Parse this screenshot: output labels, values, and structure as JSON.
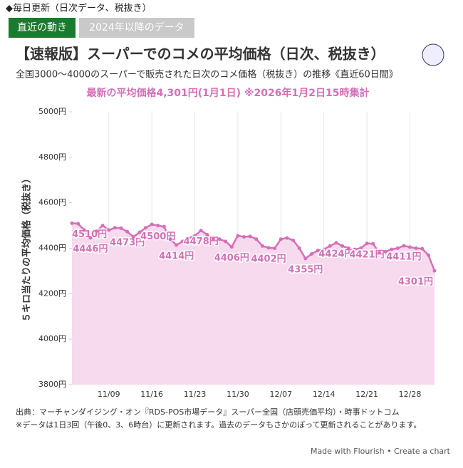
{
  "header": {
    "note": "◆毎日更新（日次データ、税抜き）",
    "tabs": [
      "直近の動き",
      "2024年以降のデータ"
    ]
  },
  "chart_data": {
    "type": "line",
    "title": "【速報版】スーパーでのコメの平均価格（日次、税抜き）",
    "subtitle": "全国3000〜4000のスーパーで販売された日次のコメ価格（税抜き）の推移《直近60日間》",
    "highlight": "最新の平均価格4,301円(1月1日) ※2026年1月2日15時集計",
    "ylabel": "５キロ当たりの平均価格（税抜き）",
    "x": [
      "11/03",
      "11/04",
      "11/05",
      "11/06",
      "11/07",
      "11/08",
      "11/09",
      "11/10",
      "11/11",
      "11/12",
      "11/13",
      "11/14",
      "11/15",
      "11/16",
      "11/17",
      "11/18",
      "11/19",
      "11/20",
      "11/21",
      "11/22",
      "11/23",
      "11/24",
      "11/25",
      "11/26",
      "11/27",
      "11/28",
      "11/29",
      "11/30",
      "12/01",
      "12/02",
      "12/03",
      "12/04",
      "12/05",
      "12/06",
      "12/07",
      "12/08",
      "12/09",
      "12/10",
      "12/11",
      "12/12",
      "12/13",
      "12/14",
      "12/15",
      "12/16",
      "12/17",
      "12/18",
      "12/19",
      "12/20",
      "12/21",
      "12/22",
      "12/23",
      "12/24",
      "12/25",
      "12/26",
      "12/27",
      "12/28",
      "12/29",
      "12/30",
      "12/31",
      "1/01"
    ],
    "xticks": [
      "11/09",
      "11/16",
      "11/23",
      "11/30",
      "12/07",
      "12/14",
      "12/21",
      "12/28"
    ],
    "series": [
      {
        "name": "平均価格",
        "color": "#d46fb8",
        "fill": "#f7daee",
        "values": [
          4510,
          4508,
          4480,
          4446,
          4475,
          4500,
          4480,
          4490,
          4488,
          4473,
          4450,
          4470,
          4490,
          4505,
          4500,
          4495,
          4440,
          4414,
          4430,
          4445,
          4455,
          4478,
          4460,
          4440,
          4440,
          4430,
          4406,
          4455,
          4450,
          4452,
          4440,
          4410,
          4402,
          4400,
          4440,
          4445,
          4435,
          4400,
          4355,
          4375,
          4390,
          4395,
          4410,
          4424,
          4410,
          4400,
          4395,
          4400,
          4421,
          4420,
          4380,
          4385,
          4395,
          4400,
          4411,
          4405,
          4400,
          4398,
          4370,
          4301
        ],
        "value_labels": [
          "4510円",
          null,
          null,
          "4446円",
          null,
          null,
          null,
          null,
          null,
          "4473円",
          null,
          null,
          null,
          null,
          "4500円",
          null,
          null,
          "4414円",
          null,
          null,
          null,
          "4478円",
          null,
          null,
          null,
          null,
          "4406円",
          null,
          null,
          null,
          null,
          null,
          "4402円",
          null,
          null,
          null,
          null,
          null,
          "4355円",
          null,
          null,
          null,
          null,
          "4424円",
          null,
          null,
          null,
          null,
          "4421円",
          null,
          null,
          null,
          null,
          null,
          "4411円",
          null,
          null,
          null,
          null,
          "4301円"
        ]
      }
    ],
    "ylim": [
      3800,
      5000
    ],
    "yticks": [
      {
        "value": 3800,
        "label": "3800円"
      },
      {
        "value": 4000,
        "label": "4000円"
      },
      {
        "value": 4200,
        "label": "4200円"
      },
      {
        "value": 4400,
        "label": "4400円"
      },
      {
        "value": 4600,
        "label": "4600円"
      },
      {
        "value": 4800,
        "label": "4800円"
      },
      {
        "value": 5000,
        "label": "5000円"
      }
    ],
    "grid": "x"
  },
  "footer": {
    "source": "出典：マーチャンダイジング・オン『RDS-POS市場データ』スーパー全国（店頭売価平均）・時事ドットコム",
    "note": "※データは1日3回（午後0、3、6時台）に更新されます。過去のデータもさかのぼって更新されることがあります。",
    "credit": "Made with Flourish • Create a chart"
  }
}
